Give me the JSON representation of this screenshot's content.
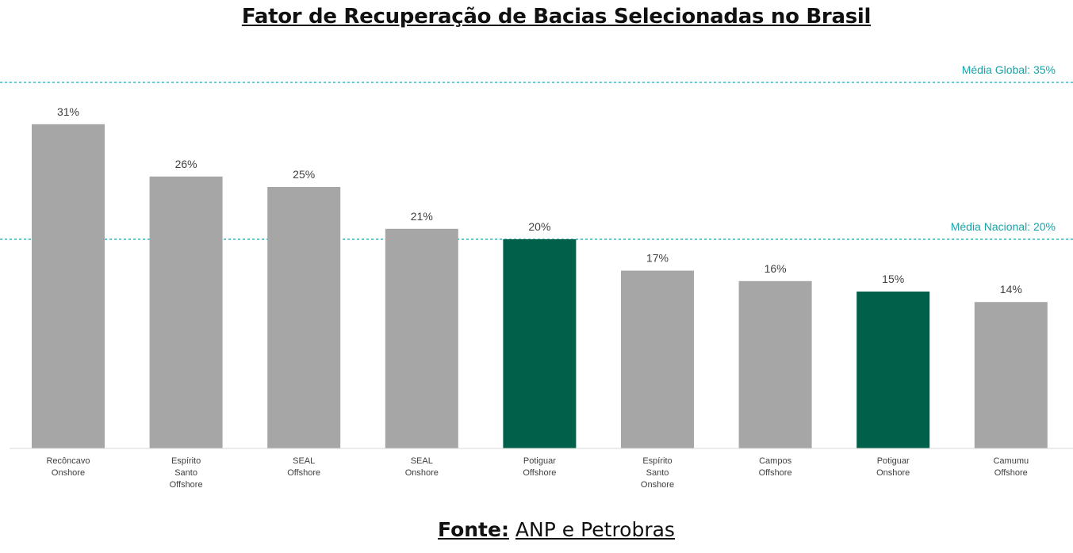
{
  "title": "Fator de Recuperação de Bacias Selecionadas no Brasil",
  "source": {
    "label": "Fonte:",
    "text": "ANP e Petrobras"
  },
  "colors": {
    "default_bar": "#a6a6a6",
    "highlight_bar": "#00604a",
    "reference_line": "#1aa3a6"
  },
  "chart_data": {
    "type": "bar",
    "title": "Fator de Recuperação de Bacias Selecionadas no Brasil",
    "xlabel": "",
    "ylabel": "",
    "ylim": [
      0,
      35
    ],
    "unit": "%",
    "grid": false,
    "categories": [
      [
        "Recôncavo",
        "Onshore"
      ],
      [
        "Espírito",
        "Santo",
        "Offshore"
      ],
      [
        "SEAL",
        "Offshore"
      ],
      [
        "SEAL",
        "Onshore"
      ],
      [
        "Potiguar",
        "Offshore"
      ],
      [
        "Espírito",
        "Santo",
        "Onshore"
      ],
      [
        "Campos",
        "Offshore"
      ],
      [
        "Potiguar",
        "Onshore"
      ],
      [
        "Camumu",
        "Offshore"
      ]
    ],
    "values": [
      31,
      26,
      25,
      21,
      20,
      17,
      16,
      15,
      14
    ],
    "value_labels": [
      "31%",
      "26%",
      "25%",
      "21%",
      "20%",
      "17%",
      "16%",
      "15%",
      "14%"
    ],
    "highlighted": [
      false,
      false,
      false,
      false,
      true,
      false,
      false,
      true,
      false
    ],
    "reference_lines": [
      {
        "label": "Média Global: 35%",
        "value": 35
      },
      {
        "label": "Média Nacional: 20%",
        "value": 20
      }
    ]
  }
}
